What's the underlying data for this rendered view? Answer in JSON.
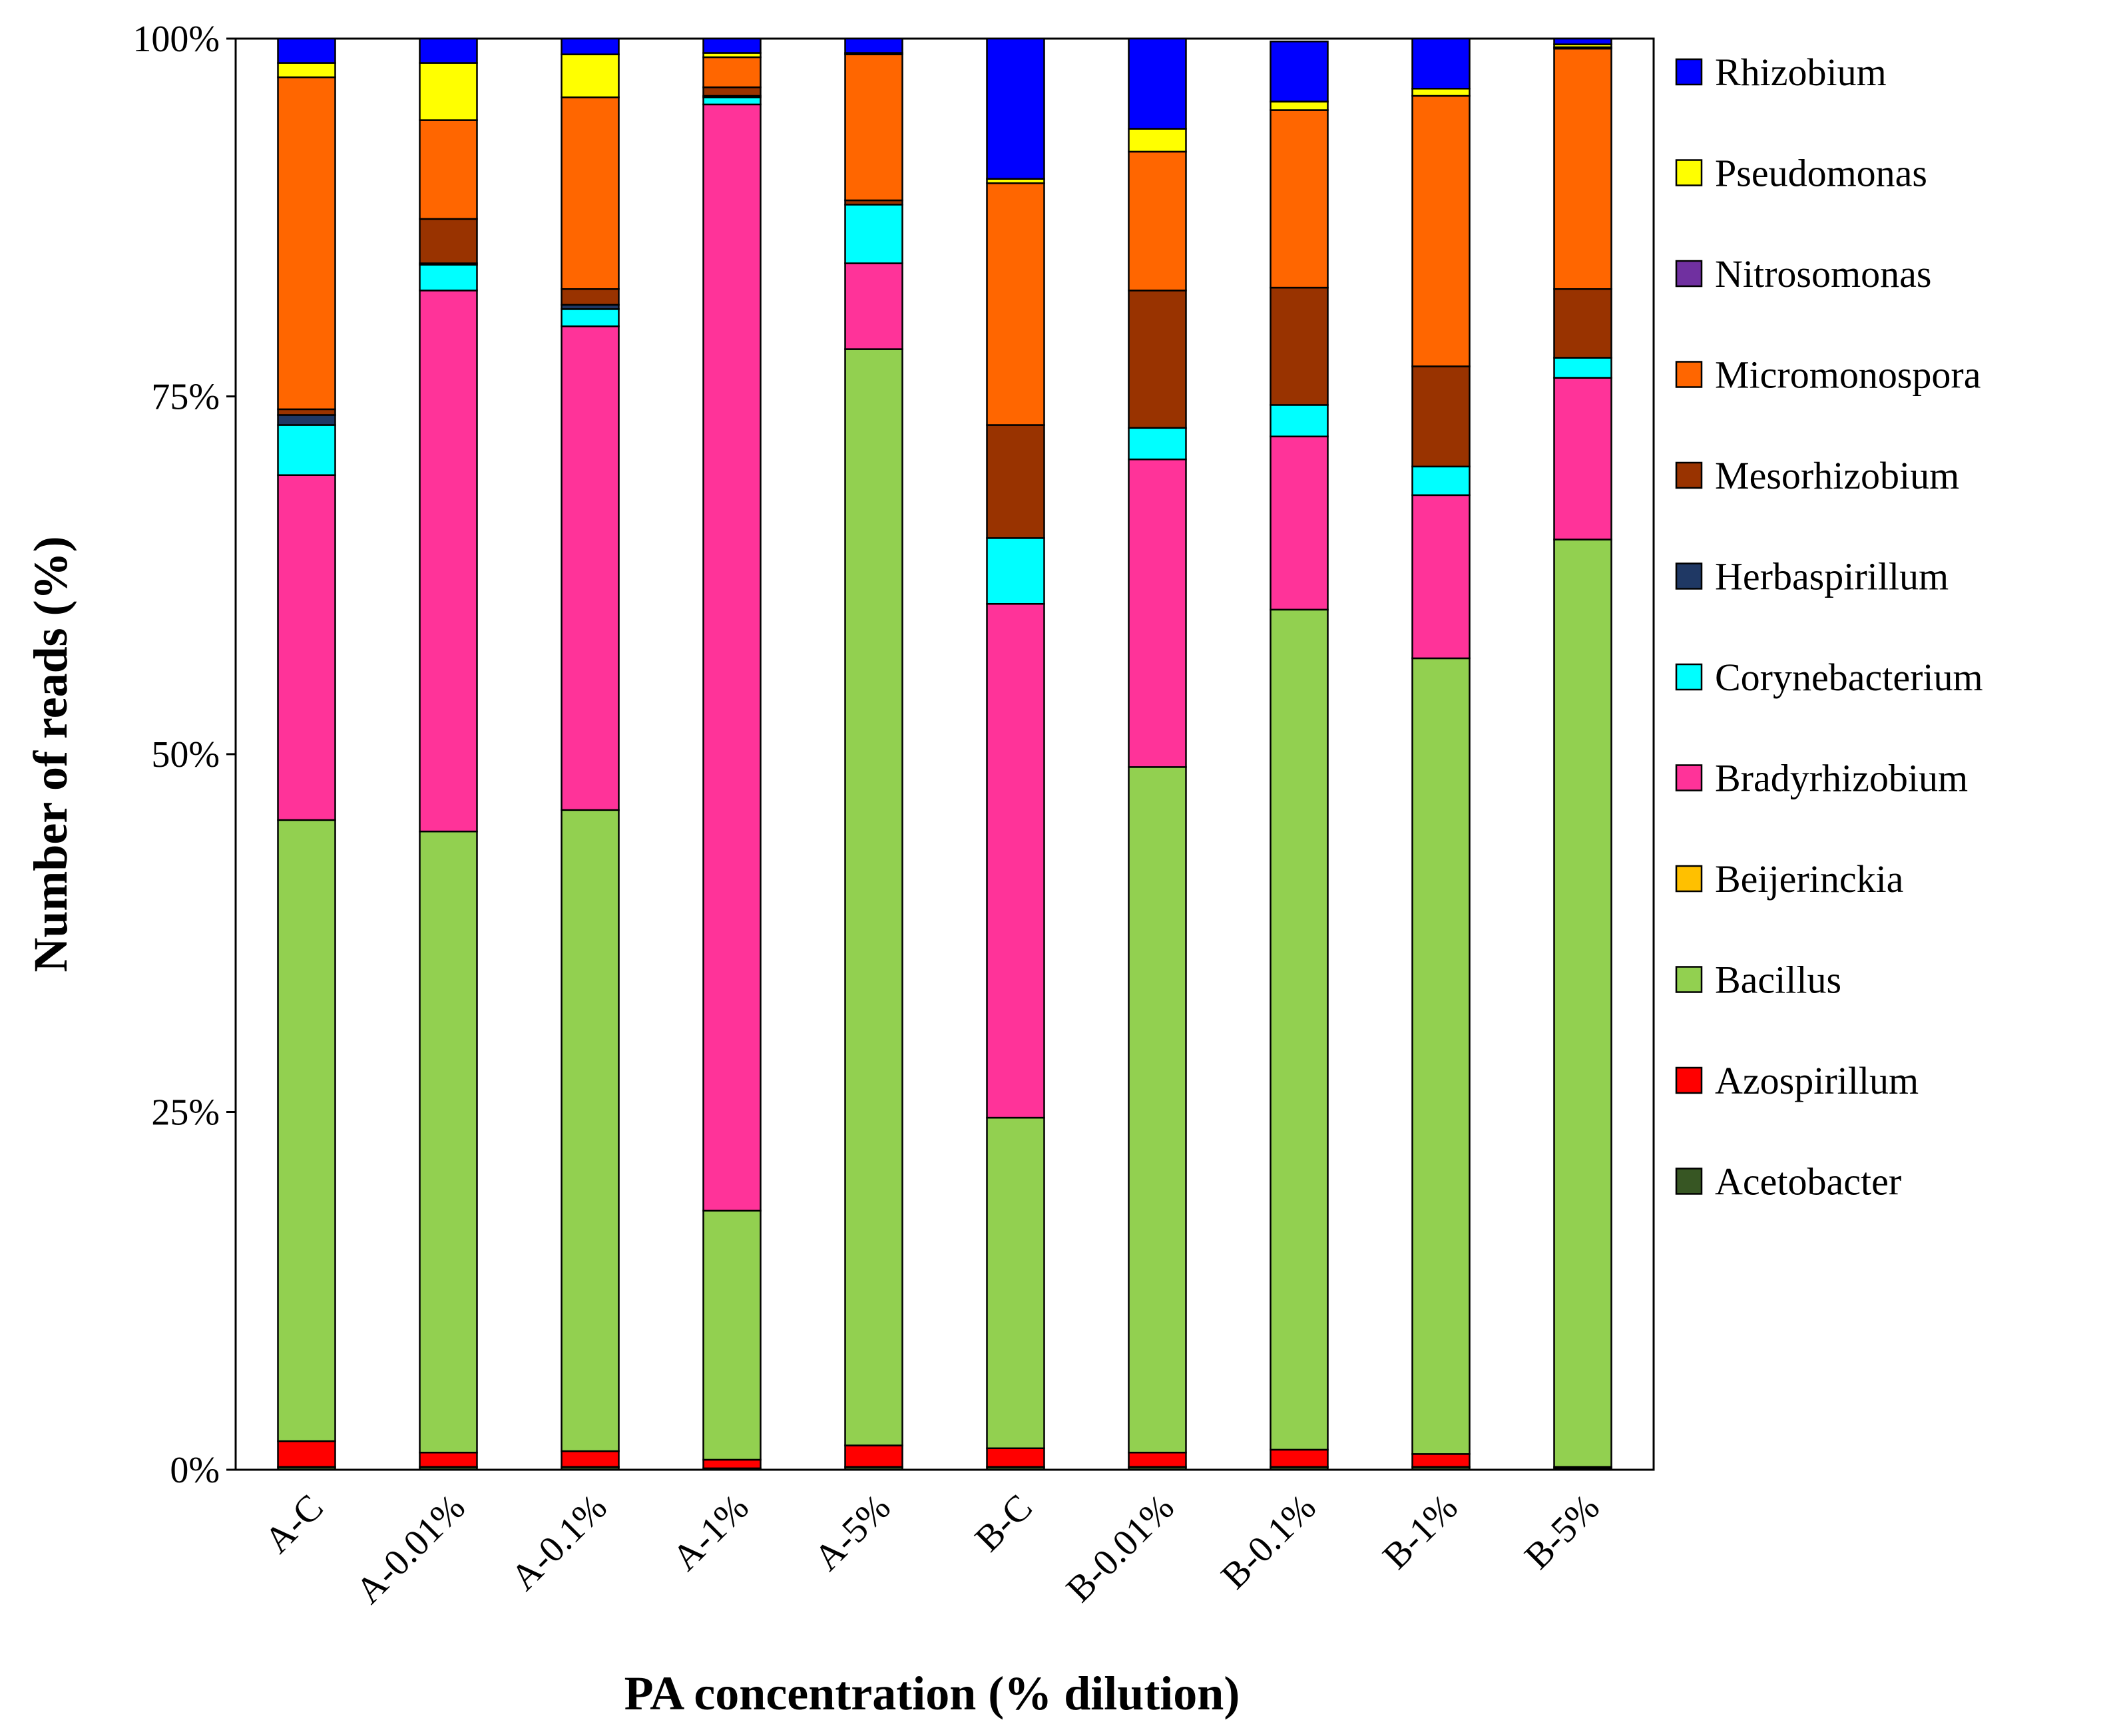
{
  "chart_data": {
    "type": "bar",
    "stacked": true,
    "normalized": true,
    "title": "",
    "xlabel": "PA concentration (% dilution)",
    "ylabel": "Number of reads (%)",
    "ylim": [
      0,
      100
    ],
    "y_ticks": [
      {
        "value": 0,
        "label": "0%"
      },
      {
        "value": 25,
        "label": "25%"
      },
      {
        "value": 50,
        "label": "50%"
      },
      {
        "value": 75,
        "label": "75%"
      },
      {
        "value": 100,
        "label": "100%"
      }
    ],
    "categories": [
      "A-C",
      "A-0.01%",
      "A-0.1%",
      "A-1%",
      "A-5%",
      "B-C",
      "B-0.01%",
      "B-0.1%",
      "B-1%",
      "B-5%"
    ],
    "legend_position": "right",
    "series": [
      {
        "name": "Acetobacter",
        "color": "#375623",
        "values": [
          0.2,
          0.2,
          0.2,
          0.1,
          0.2,
          0.2,
          0.2,
          0.2,
          0.2,
          0.1
        ]
      },
      {
        "name": "Azospirillum",
        "color": "#ff0000",
        "values": [
          1.8,
          1.0,
          1.1,
          0.6,
          1.5,
          1.3,
          1.0,
          1.2,
          0.9,
          0.1
        ]
      },
      {
        "name": "Bacillus",
        "color": "#92d050",
        "values": [
          43.4,
          43.4,
          44.8,
          17.4,
          76.6,
          23.1,
          47.9,
          58.7,
          55.6,
          64.8
        ]
      },
      {
        "name": "Beijerinckia",
        "color": "#ffc000",
        "values": [
          0,
          0,
          0,
          0,
          0,
          0,
          0,
          0,
          0,
          0
        ]
      },
      {
        "name": "Bradyrhizobium",
        "color": "#ff3399",
        "values": [
          24.1,
          37.8,
          33.8,
          77.3,
          6.0,
          35.9,
          21.5,
          12.1,
          11.4,
          11.3
        ]
      },
      {
        "name": "Corynebacterium",
        "color": "#00ffff",
        "values": [
          3.5,
          1.8,
          1.2,
          0.5,
          4.1,
          4.6,
          2.2,
          2.2,
          2.0,
          1.4
        ]
      },
      {
        "name": "Herbaspirillum",
        "color": "#1f3864",
        "values": [
          0.7,
          0.1,
          0.3,
          0.1,
          0,
          0,
          0,
          0,
          0,
          0
        ]
      },
      {
        "name": "Mesorhizobium",
        "color": "#993300",
        "values": [
          0.4,
          3.1,
          1.1,
          0.6,
          0.3,
          7.9,
          9.6,
          8.2,
          7.0,
          4.8
        ]
      },
      {
        "name": "Micromonospora",
        "color": "#ff6600",
        "values": [
          23.2,
          6.9,
          13.4,
          2.1,
          10.2,
          16.9,
          9.7,
          12.4,
          18.9,
          16.8
        ]
      },
      {
        "name": "Nitrosomonas",
        "color": "#7030a0",
        "values": [
          0,
          0,
          0,
          0,
          0,
          0,
          0,
          0,
          0,
          0.1
        ]
      },
      {
        "name": "Pseudomonas",
        "color": "#ffff00",
        "values": [
          1.0,
          4.0,
          3.0,
          0.3,
          0.1,
          0.3,
          1.6,
          0.6,
          0.5,
          0.2
        ]
      },
      {
        "name": "Rhizobium",
        "color": "#0000ff",
        "values": [
          1.7,
          1.7,
          1.1,
          1.0,
          1.0,
          9.8,
          6.3,
          4.2,
          3.5,
          0.4
        ]
      }
    ]
  }
}
